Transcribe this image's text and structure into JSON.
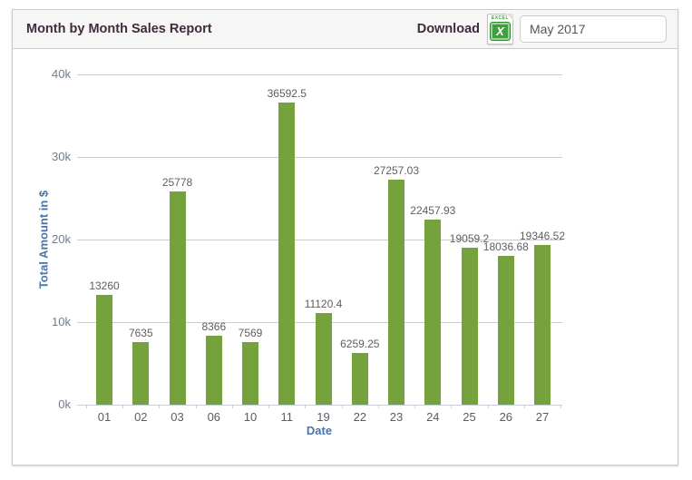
{
  "header": {
    "title": "Month by Month Sales Report",
    "download_label": "Download",
    "excel_icon_label": "EXCEL",
    "excel_icon_letter": "X",
    "date_input_value": "May 2017"
  },
  "chart_data": {
    "type": "bar",
    "title": "Month by Month Sales Report",
    "categories": [
      "01",
      "02",
      "03",
      "06",
      "10",
      "11",
      "19",
      "22",
      "23",
      "24",
      "25",
      "26",
      "27"
    ],
    "values": [
      13260,
      7635,
      25778,
      8366,
      7569,
      36592.5,
      11120.4,
      6259.25,
      27257.03,
      22457.93,
      19059.2,
      18036.68,
      19346.52
    ],
    "value_labels": [
      "13260",
      "7635",
      "25778",
      "8366",
      "7569",
      "36592.5",
      "11120.4",
      "6259.25",
      "27257.03",
      "22457.93",
      "19059.2",
      "18036.68",
      "19346.52"
    ],
    "xlabel": "Date",
    "ylabel": "Total Amount in $",
    "ylim": [
      0,
      40000
    ],
    "yticks": [
      0,
      10000,
      20000,
      30000,
      40000
    ],
    "ytick_labels": [
      "0k",
      "10k",
      "20k",
      "30k",
      "40k"
    ],
    "grid": true,
    "legend": "none",
    "bar_color": "#76A23E"
  },
  "colors": {
    "bar": "#76A23E",
    "grid_line": "#CCCCCC",
    "axis_line": "#C6CFD8",
    "value_label": "#5E5E5E",
    "x_tick_label": "#555E69",
    "y_tick_label": "#6F7D8D",
    "axis_title": "#4876A8",
    "header_bg": "#F6F6F6",
    "card_border": "#CCCCCC",
    "title_text": "#3E2B3E",
    "input_border": "#CCCCCC",
    "input_text": "#555555",
    "excel_green": "#3FA03F"
  }
}
